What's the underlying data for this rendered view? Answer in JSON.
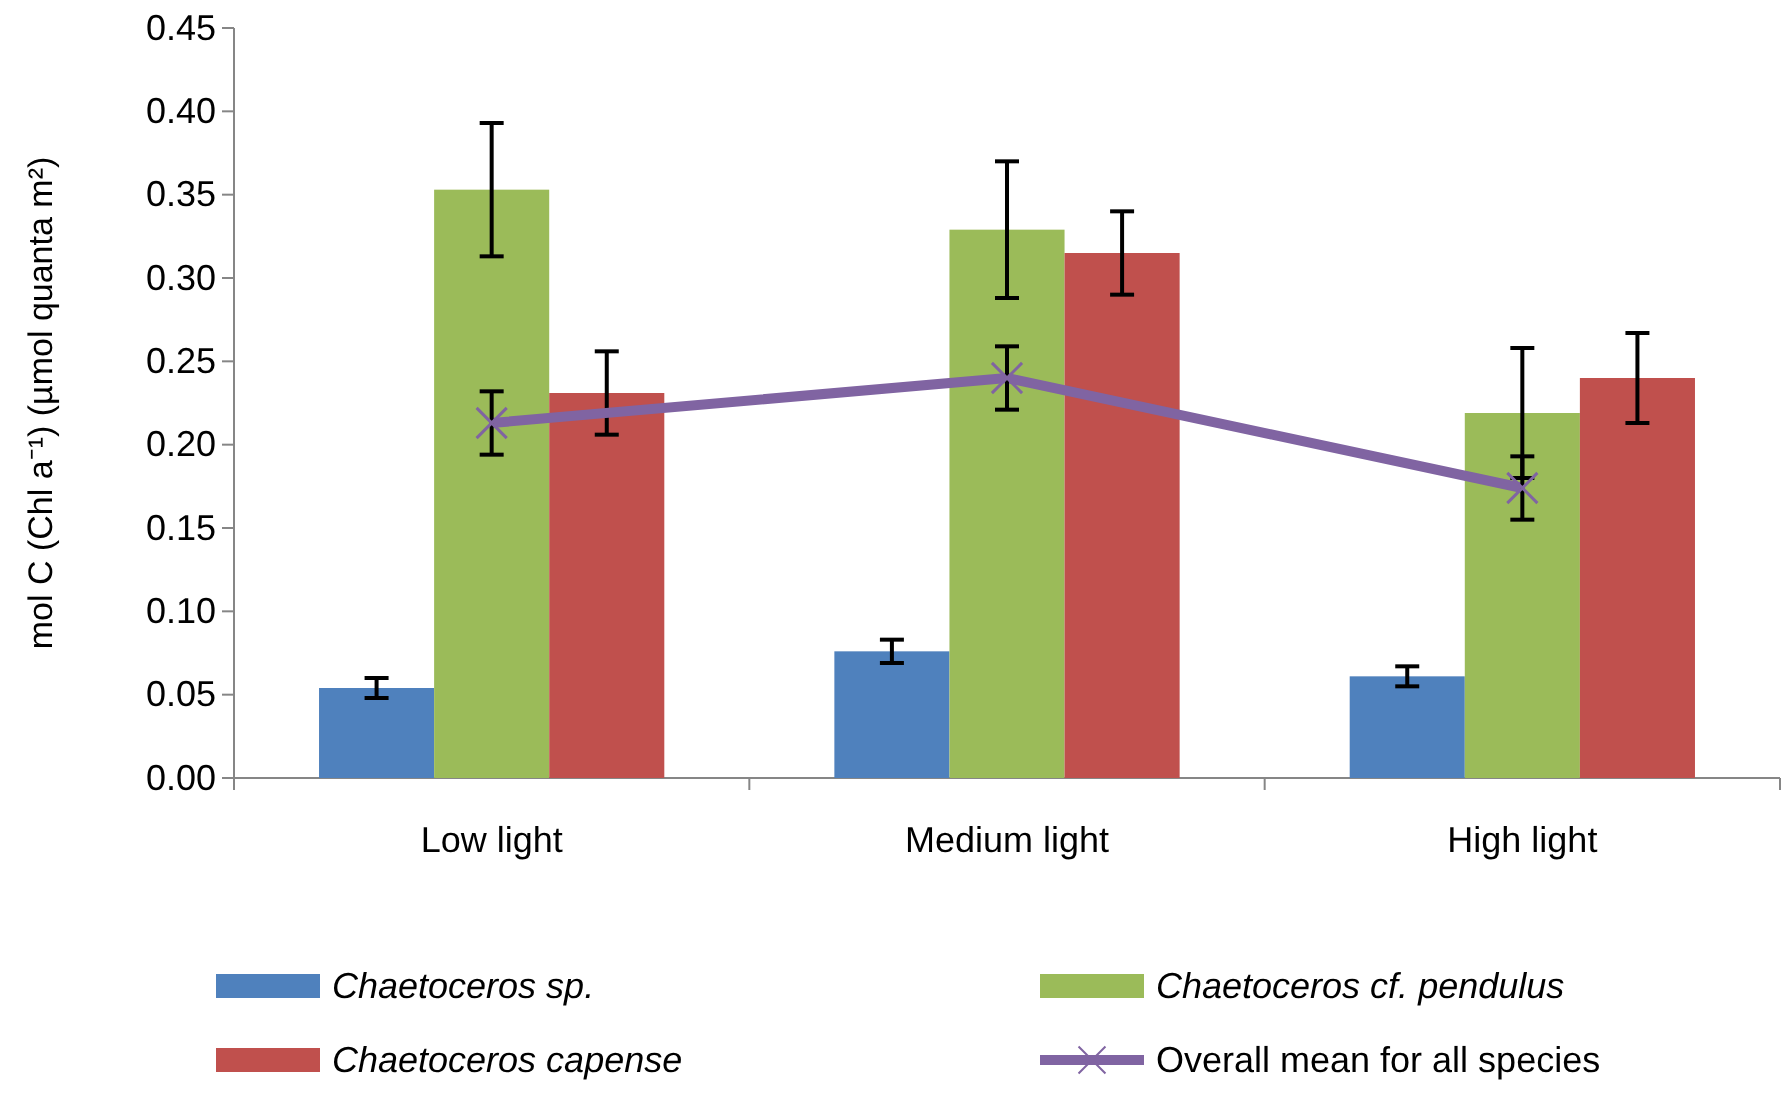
{
  "chart_data": {
    "type": "bar",
    "ylabel": "mol C (Chl a⁻¹)  (µmol quanta m²)",
    "categories": [
      "Low light",
      "Medium light",
      "High light"
    ],
    "series": [
      {
        "name": "Chaetoceros sp.",
        "color": "#4f81bd",
        "values": [
          0.054,
          0.076,
          0.061
        ],
        "errors": [
          0.006,
          0.007,
          0.006
        ]
      },
      {
        "name": "Chaetoceros cf. pendulus",
        "color": "#9bbb59",
        "values": [
          0.353,
          0.329,
          0.219
        ],
        "errors": [
          0.04,
          0.041,
          0.039
        ]
      },
      {
        "name": "Chaetoceros capense",
        "color": "#c0504d",
        "values": [
          0.231,
          0.315,
          0.24
        ],
        "errors": [
          0.025,
          0.025,
          0.027
        ]
      },
      {
        "name": "Overall mean for all species",
        "type": "line",
        "color": "#8064a2",
        "values": [
          0.213,
          0.24,
          0.174
        ],
        "errors": [
          0.019,
          0.019,
          0.019
        ],
        "marker": "cross"
      }
    ],
    "ylim": [
      0,
      0.45
    ],
    "yticks": [
      {
        "value": 0,
        "label": "0.00"
      },
      {
        "value": 0.05,
        "label": "0.05"
      },
      {
        "value": 0.1,
        "label": "0.10"
      },
      {
        "value": 0.15,
        "label": "0.15"
      },
      {
        "value": 0.2,
        "label": "0.20"
      },
      {
        "value": 0.25,
        "label": "0.25"
      },
      {
        "value": 0.3,
        "label": "0.30"
      },
      {
        "value": 0.35,
        "label": "0.35"
      },
      {
        "value": 0.4,
        "label": "0.40"
      },
      {
        "value": 0.45,
        "label": "0.45"
      }
    ],
    "grid": false,
    "legend": "bottom"
  }
}
